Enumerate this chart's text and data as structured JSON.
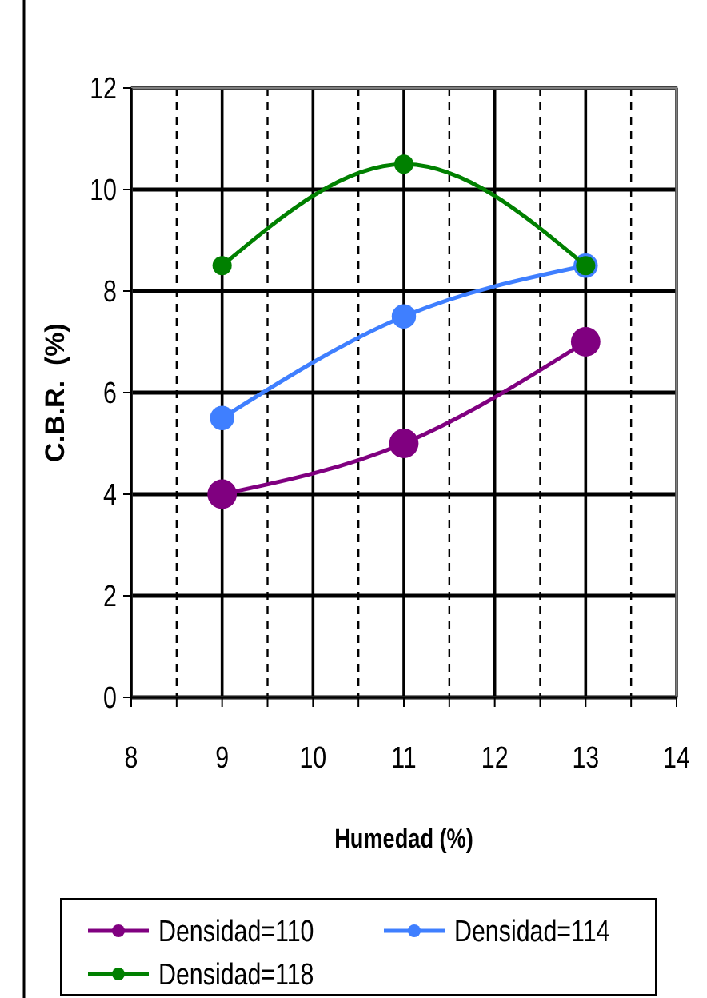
{
  "chart_data": {
    "type": "line",
    "xlabel": "Humedad (%)",
    "ylabel": "C.B.R.  (%)",
    "xlim": [
      8,
      14
    ],
    "xticks": [
      8,
      {
        "value": 8.5,
        "label": null
      },
      9,
      {
        "value": 9.5,
        "label": null
      },
      10,
      {
        "value": 10.5,
        "label": null
      },
      11,
      {
        "value": 11.5,
        "label": null
      },
      12,
      {
        "value": 12.5,
        "label": null
      },
      13,
      {
        "value": 13.5,
        "label": null
      },
      14
    ],
    "ylim": [
      0,
      12
    ],
    "yticks": [
      0,
      2,
      4,
      6,
      8,
      10,
      12
    ],
    "grid": true,
    "legend": "bottom",
    "marker": "circle",
    "line_style": "solid",
    "x": [
      9,
      11,
      13
    ],
    "series": [
      {
        "name": "Densidad=110",
        "color": "#800080",
        "values": [
          4,
          5,
          7
        ]
      },
      {
        "name": "Densidad=114",
        "color": "#3f7fff",
        "values": [
          5.5,
          7.5,
          8.5
        ]
      },
      {
        "name": "Densidad=118",
        "color": "#008000",
        "values": [
          8.5,
          10.5,
          8.5
        ]
      }
    ]
  }
}
